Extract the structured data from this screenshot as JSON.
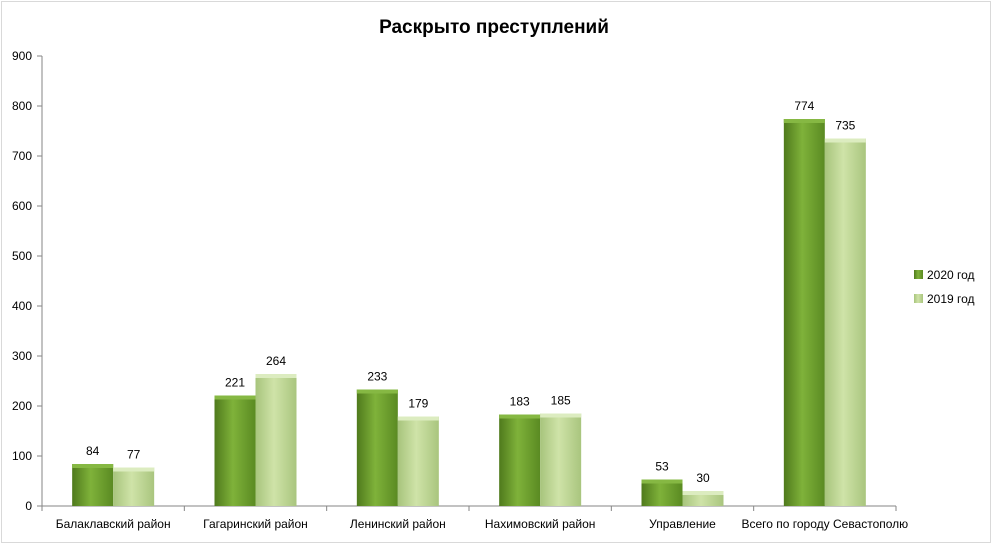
{
  "chart_data": {
    "type": "bar",
    "title": "Раскрыто  преступлений",
    "categories": [
      "Балаклавский район",
      "Гагаринский район",
      "Ленинский район",
      "Нахимовский район",
      "Управление",
      "Всего по городу Севастополю"
    ],
    "series": [
      {
        "name": "2020 год",
        "values": [
          84,
          221,
          233,
          183,
          53,
          774
        ],
        "color": "#6b9a2a",
        "light": "#9cc45a"
      },
      {
        "name": "2019 год",
        "values": [
          77,
          264,
          179,
          185,
          30,
          735
        ],
        "color": "#a9c87a",
        "light": "#d4e8b0"
      }
    ],
    "xlabel": "",
    "ylabel": "",
    "ylim": [
      0,
      900
    ],
    "yticks": [
      0,
      100,
      200,
      300,
      400,
      500,
      600,
      700,
      800,
      900
    ],
    "grid": false,
    "legend": "right"
  }
}
